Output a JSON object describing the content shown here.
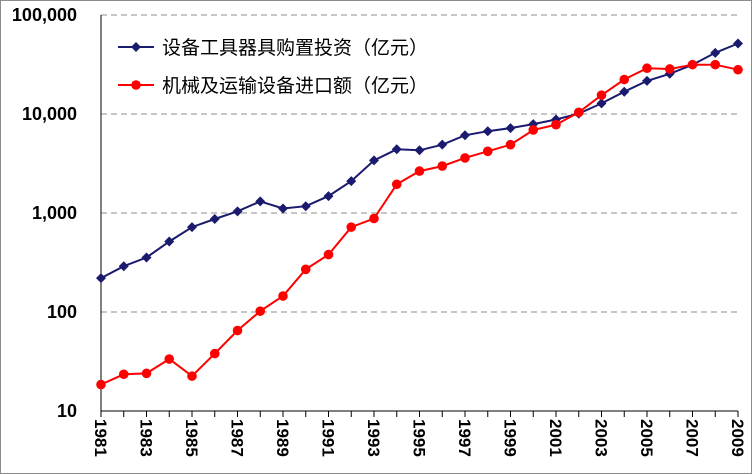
{
  "chart_data": {
    "type": "line",
    "title": "",
    "xlabel": "",
    "ylabel": "",
    "yscale": "log",
    "ylim": [
      10,
      100000
    ],
    "grid": true,
    "legend_position": "top-left",
    "x_ticks": [
      "1981",
      "1983",
      "1985",
      "1987",
      "1989",
      "1991",
      "1993",
      "1995",
      "1997",
      "1999",
      "2001",
      "2003",
      "2005",
      "2007",
      "2009"
    ],
    "y_ticks": [
      {
        "value": 10,
        "label": "10"
      },
      {
        "value": 100,
        "label": "100"
      },
      {
        "value": 1000,
        "label": "1,000"
      },
      {
        "value": 10000,
        "label": "10,000"
      },
      {
        "value": 100000,
        "label": "100,000"
      }
    ],
    "x": [
      1981,
      1982,
      1983,
      1984,
      1985,
      1986,
      1987,
      1988,
      1989,
      1990,
      1991,
      1992,
      1993,
      1994,
      1995,
      1996,
      1997,
      1998,
      1999,
      2000,
      2001,
      2002,
      2003,
      2004,
      2005,
      2006,
      2007,
      2008,
      2009
    ],
    "series": [
      {
        "name": "设备工具器具购置投资（亿元）",
        "color": "#1a1a6e",
        "marker": "diamond",
        "values": [
          220,
          290,
          355,
          515,
          720,
          870,
          1040,
          1310,
          1110,
          1170,
          1480,
          2100,
          3400,
          4400,
          4300,
          4900,
          6100,
          6700,
          7200,
          7900,
          8800,
          10100,
          12800,
          16800,
          21600,
          25500,
          31500,
          41500,
          51500
        ]
      },
      {
        "name": "机械及运输设备进口额（亿元）",
        "color": "#ff0000",
        "marker": "circle",
        "values": [
          18.5,
          23.5,
          24,
          33.5,
          22.5,
          38,
          65,
          102,
          145,
          270,
          380,
          720,
          880,
          1950,
          2650,
          2980,
          3600,
          4200,
          4900,
          6900,
          7800,
          10400,
          15500,
          22300,
          29000,
          28500,
          31500,
          31500,
          28000
        ]
      }
    ]
  }
}
